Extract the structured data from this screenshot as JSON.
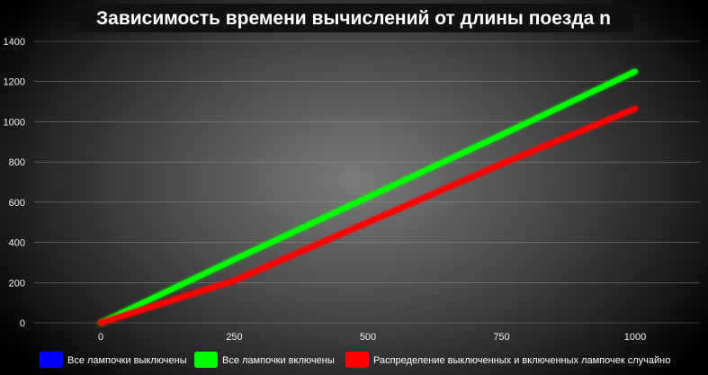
{
  "chart_data": {
    "type": "line",
    "title": "Зависимость времени вычислений от длины поезда n",
    "x": [
      0,
      250,
      500,
      750,
      1000
    ],
    "xticks": [
      "0",
      "250",
      "500",
      "750",
      "1000"
    ],
    "yticks": [
      "0",
      "200",
      "400",
      "600",
      "800",
      "1000",
      "1200",
      "1400"
    ],
    "xlim": [
      0,
      1000
    ],
    "ylim": [
      0,
      1400
    ],
    "grid": true,
    "legend_position": "bottom",
    "series": [
      {
        "name": "Все лампочки выключены",
        "color": "#0000ff",
        "values": [
          0,
          0,
          0,
          0,
          0
        ]
      },
      {
        "name": "Все лампочки включены",
        "color": "#00ff00",
        "values": [
          0,
          315,
          625,
          935,
          1250
        ]
      },
      {
        "name": "Распределение выключенных и включенных лампочек случайно",
        "color": "#ff0000",
        "values": [
          0,
          210,
          500,
          790,
          1065
        ]
      }
    ]
  }
}
